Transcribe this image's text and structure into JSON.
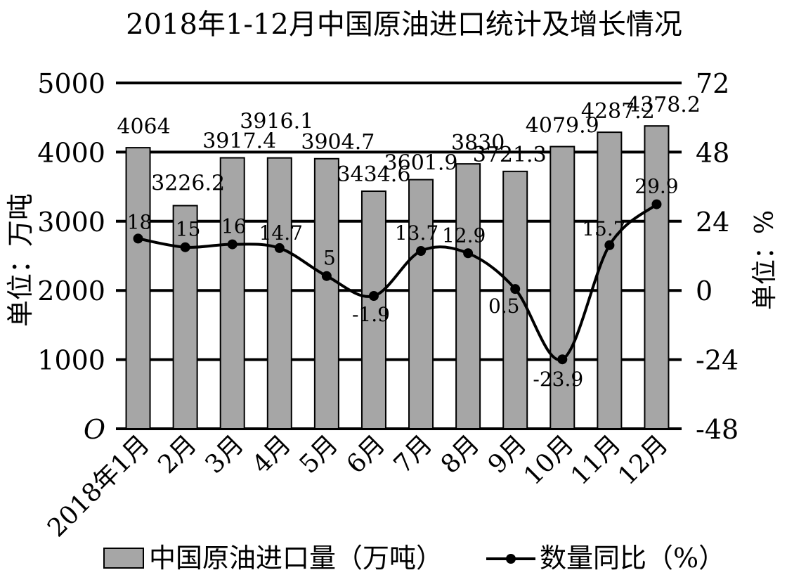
{
  "chart_data": {
    "type": "bar+line",
    "title": "2018年1-12月中国原油进口统计及增长情况",
    "categories": [
      "2018年1月",
      "2月",
      "3月",
      "4月",
      "5月",
      "6月",
      "7月",
      "8月",
      "9月",
      "10月",
      "11月",
      "12月"
    ],
    "series": [
      {
        "name": "中国原油进口量（万吨）",
        "type": "bar",
        "axis": "left",
        "values": [
          4064,
          3226.2,
          3917.4,
          3916.1,
          3904.7,
          3434.6,
          3601.9,
          3830,
          3721.3,
          4079.9,
          4287.2,
          4378.2
        ],
        "labels": [
          "4064",
          "3226.2",
          "3917.4",
          "3916.1",
          "3904.7",
          "3434.6",
          "3601.9",
          "3830",
          "3721.3",
          "4079.9",
          "4287.2",
          "4378.2"
        ]
      },
      {
        "name": "数量同比（%）",
        "type": "line",
        "axis": "right",
        "values": [
          18,
          15,
          16,
          14.7,
          5,
          -1.9,
          13.7,
          12.9,
          0.5,
          -23.9,
          15.7,
          29.9
        ],
        "labels": [
          "18",
          "15",
          "16",
          "14.7",
          "5",
          "-1.9",
          "13.7",
          "12.9",
          "0.5",
          "-23.9",
          "15.7",
          "29.9"
        ]
      }
    ],
    "y_left": {
      "label": "单位：万吨",
      "ticks": [
        "O",
        "1000",
        "2000",
        "3000",
        "4000",
        "5000"
      ],
      "ylim": [
        0,
        5000
      ]
    },
    "y_right": {
      "label": "单位：%",
      "ticks": [
        "-48",
        "-24",
        "0",
        "24",
        "48",
        "72"
      ],
      "ylim": [
        -48,
        72
      ]
    },
    "grid": true,
    "legend_position": "bottom",
    "colors": {
      "bar_fill": "#a6a6a6",
      "bar_stroke": "#000000",
      "line": "#000000",
      "grid": "#000000"
    }
  }
}
